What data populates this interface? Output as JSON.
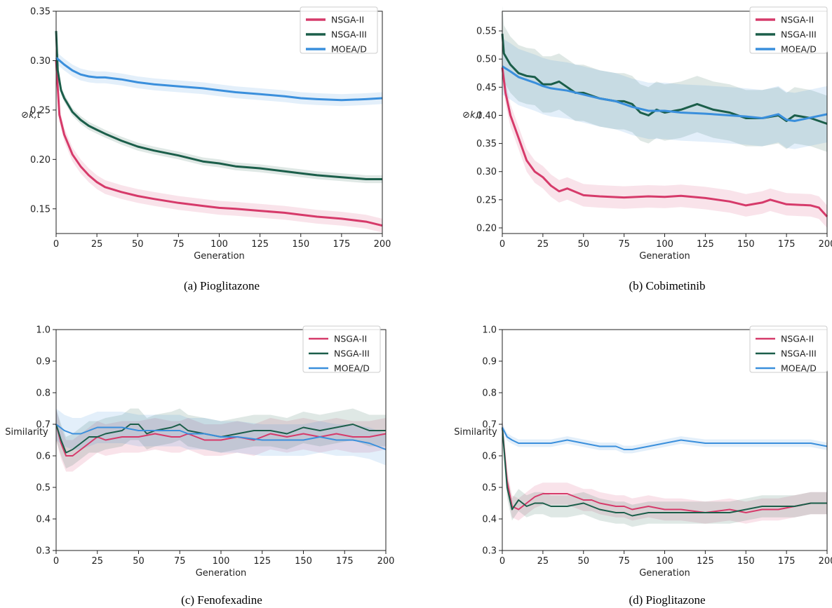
{
  "colors": {
    "nsga2": "#d63a6a",
    "nsga3": "#1b5e4a",
    "moead": "#3a8fdc"
  },
  "chart_data": [
    {
      "id": "a",
      "type": "line",
      "caption": "(a) Pioglitazone",
      "xlabel": "Generation",
      "ylabel": "⊘k,t",
      "xlim": [
        0,
        200
      ],
      "ylim": [
        0.125,
        0.35
      ],
      "xticks": [
        0,
        25,
        50,
        75,
        100,
        125,
        150,
        175,
        200
      ],
      "yticks": [
        0.15,
        0.2,
        0.25,
        0.3,
        0.35
      ],
      "ytick_labels": [
        "0.15",
        "0.20",
        "0.25",
        "0.30",
        "0.35"
      ],
      "legend": "top-right",
      "line_width": 3,
      "series": [
        {
          "name": "NSGA-II",
          "color_key": "nsga2",
          "band": 0.007,
          "x": [
            0,
            2,
            5,
            10,
            15,
            20,
            25,
            30,
            40,
            50,
            60,
            75,
            90,
            100,
            110,
            125,
            140,
            150,
            160,
            175,
            190,
            200
          ],
          "y": [
            0.3,
            0.245,
            0.225,
            0.205,
            0.193,
            0.184,
            0.177,
            0.172,
            0.167,
            0.163,
            0.16,
            0.156,
            0.153,
            0.151,
            0.15,
            0.148,
            0.146,
            0.144,
            0.142,
            0.14,
            0.137,
            0.133
          ]
        },
        {
          "name": "NSGA-III",
          "color_key": "nsga3",
          "band": 0.004,
          "x": [
            0,
            1,
            3,
            5,
            10,
            15,
            20,
            25,
            30,
            40,
            50,
            60,
            75,
            90,
            100,
            110,
            125,
            140,
            150,
            160,
            175,
            190,
            200
          ],
          "y": [
            0.33,
            0.29,
            0.27,
            0.262,
            0.248,
            0.24,
            0.234,
            0.23,
            0.226,
            0.219,
            0.213,
            0.209,
            0.204,
            0.198,
            0.196,
            0.193,
            0.191,
            0.188,
            0.186,
            0.184,
            0.182,
            0.18,
            0.18
          ]
        },
        {
          "name": "MOEA/D",
          "color_key": "moead",
          "band": 0.006,
          "x": [
            0,
            5,
            10,
            15,
            20,
            25,
            30,
            40,
            50,
            60,
            75,
            90,
            100,
            110,
            125,
            140,
            150,
            160,
            175,
            190,
            200
          ],
          "y": [
            0.303,
            0.296,
            0.29,
            0.286,
            0.284,
            0.283,
            0.283,
            0.281,
            0.278,
            0.276,
            0.274,
            0.272,
            0.27,
            0.268,
            0.266,
            0.264,
            0.262,
            0.261,
            0.26,
            0.261,
            0.262
          ]
        }
      ]
    },
    {
      "id": "b",
      "type": "line",
      "caption": "(b) Cobimetinib",
      "xlabel": "Generation",
      "ylabel": "⊘k,t",
      "xlim": [
        0,
        200
      ],
      "ylim": [
        0.19,
        0.585
      ],
      "xticks": [
        0,
        25,
        50,
        75,
        100,
        125,
        150,
        175,
        200
      ],
      "yticks": [
        0.2,
        0.25,
        0.3,
        0.35,
        0.4,
        0.45,
        0.5,
        0.55
      ],
      "ytick_labels": [
        "0.20",
        "0.25",
        "0.30",
        "0.35",
        "0.40",
        "0.45",
        "0.50",
        "0.55"
      ],
      "legend": "top-right",
      "line_width": 3,
      "series": [
        {
          "name": "NSGA-II",
          "color_key": "nsga2",
          "band": 0.02,
          "x": [
            0,
            2,
            5,
            10,
            15,
            20,
            25,
            30,
            35,
            40,
            50,
            60,
            75,
            90,
            100,
            110,
            125,
            140,
            150,
            160,
            165,
            175,
            190,
            195,
            200
          ],
          "y": [
            0.485,
            0.44,
            0.4,
            0.36,
            0.32,
            0.3,
            0.29,
            0.275,
            0.265,
            0.27,
            0.258,
            0.256,
            0.254,
            0.256,
            0.255,
            0.257,
            0.253,
            0.247,
            0.24,
            0.245,
            0.25,
            0.242,
            0.24,
            0.236,
            0.22
          ]
        },
        {
          "name": "NSGA-III",
          "color_key": "nsga3",
          "band": 0.05,
          "x": [
            0,
            1,
            3,
            5,
            10,
            15,
            20,
            25,
            30,
            35,
            40,
            45,
            50,
            60,
            70,
            75,
            80,
            85,
            90,
            95,
            100,
            110,
            120,
            125,
            130,
            140,
            150,
            160,
            170,
            175,
            180,
            190,
            200
          ],
          "y": [
            0.545,
            0.51,
            0.5,
            0.49,
            0.475,
            0.47,
            0.468,
            0.455,
            0.455,
            0.46,
            0.45,
            0.44,
            0.44,
            0.43,
            0.425,
            0.425,
            0.42,
            0.405,
            0.4,
            0.41,
            0.405,
            0.41,
            0.42,
            0.415,
            0.41,
            0.405,
            0.395,
            0.395,
            0.4,
            0.39,
            0.4,
            0.395,
            0.385
          ]
        },
        {
          "name": "MOEA/D",
          "color_key": "moead",
          "band": 0.05,
          "x": [
            0,
            5,
            10,
            15,
            20,
            25,
            30,
            40,
            50,
            60,
            70,
            75,
            80,
            90,
            100,
            110,
            125,
            140,
            150,
            160,
            170,
            175,
            180,
            190,
            200
          ],
          "y": [
            0.487,
            0.478,
            0.468,
            0.463,
            0.458,
            0.452,
            0.448,
            0.444,
            0.437,
            0.43,
            0.425,
            0.42,
            0.415,
            0.408,
            0.408,
            0.405,
            0.403,
            0.4,
            0.398,
            0.395,
            0.402,
            0.392,
            0.39,
            0.396,
            0.402
          ]
        }
      ]
    },
    {
      "id": "c",
      "type": "line",
      "caption": "(c) Fenofexadine",
      "xlabel": "Generation",
      "ylabel": "Similarity",
      "xlim": [
        0,
        200
      ],
      "ylim": [
        0.3,
        1.0
      ],
      "xticks": [
        0,
        25,
        50,
        75,
        100,
        125,
        150,
        175,
        200
      ],
      "yticks": [
        0.3,
        0.4,
        0.5,
        0.6,
        0.7,
        0.8,
        0.9,
        1.0
      ],
      "ytick_labels": [
        "0.3",
        "0.4",
        "0.5",
        "0.6",
        "0.7",
        "0.8",
        "0.9",
        "1.0"
      ],
      "legend": "top-right",
      "line_width": 2,
      "series": [
        {
          "name": "NSGA-II",
          "color_key": "nsga2",
          "band": 0.05,
          "x": [
            0,
            3,
            6,
            10,
            15,
            20,
            25,
            30,
            40,
            50,
            60,
            70,
            75,
            80,
            90,
            100,
            110,
            120,
            125,
            130,
            140,
            150,
            160,
            170,
            180,
            190,
            200
          ],
          "y": [
            0.7,
            0.64,
            0.6,
            0.6,
            0.62,
            0.64,
            0.66,
            0.65,
            0.66,
            0.66,
            0.67,
            0.66,
            0.66,
            0.67,
            0.65,
            0.65,
            0.66,
            0.65,
            0.66,
            0.67,
            0.66,
            0.67,
            0.66,
            0.67,
            0.66,
            0.66,
            0.67
          ]
        },
        {
          "name": "NSGA-III",
          "color_key": "nsga3",
          "band": 0.05,
          "x": [
            0,
            3,
            6,
            10,
            15,
            20,
            25,
            30,
            40,
            45,
            50,
            55,
            60,
            70,
            75,
            80,
            90,
            100,
            110,
            120,
            130,
            140,
            150,
            160,
            170,
            180,
            190,
            200
          ],
          "y": [
            0.7,
            0.65,
            0.61,
            0.62,
            0.64,
            0.66,
            0.66,
            0.67,
            0.68,
            0.7,
            0.7,
            0.67,
            0.68,
            0.69,
            0.7,
            0.68,
            0.67,
            0.66,
            0.67,
            0.68,
            0.68,
            0.67,
            0.69,
            0.68,
            0.69,
            0.7,
            0.68,
            0.68
          ]
        },
        {
          "name": "MOEA/D",
          "color_key": "moead",
          "band": 0.05,
          "x": [
            0,
            5,
            10,
            15,
            20,
            25,
            30,
            40,
            50,
            60,
            70,
            75,
            80,
            90,
            100,
            110,
            125,
            140,
            150,
            160,
            170,
            180,
            190,
            195,
            200
          ],
          "y": [
            0.7,
            0.68,
            0.67,
            0.67,
            0.68,
            0.69,
            0.69,
            0.69,
            0.68,
            0.68,
            0.68,
            0.68,
            0.67,
            0.67,
            0.66,
            0.66,
            0.65,
            0.65,
            0.65,
            0.66,
            0.65,
            0.65,
            0.64,
            0.63,
            0.62
          ]
        }
      ]
    },
    {
      "id": "d",
      "type": "line",
      "caption": "(d) Pioglitazone",
      "xlabel": "Generation",
      "ylabel": "Similarity",
      "xlim": [
        0,
        200
      ],
      "ylim": [
        0.3,
        1.0
      ],
      "xticks": [
        0,
        25,
        50,
        75,
        100,
        125,
        150,
        175,
        200
      ],
      "yticks": [
        0.3,
        0.4,
        0.5,
        0.6,
        0.7,
        0.8,
        0.9,
        1.0
      ],
      "ytick_labels": [
        "0.3",
        "0.4",
        "0.5",
        "0.6",
        "0.7",
        "0.8",
        "0.9",
        "1.0"
      ],
      "legend": "top-right",
      "line_width": 2,
      "series": [
        {
          "name": "NSGA-II",
          "color_key": "nsga2",
          "band": 0.035,
          "x": [
            0,
            3,
            6,
            10,
            15,
            20,
            25,
            30,
            40,
            45,
            50,
            55,
            60,
            70,
            75,
            80,
            90,
            100,
            110,
            125,
            140,
            150,
            160,
            170,
            180,
            190,
            200
          ],
          "y": [
            0.69,
            0.52,
            0.44,
            0.43,
            0.45,
            0.47,
            0.48,
            0.48,
            0.48,
            0.47,
            0.46,
            0.46,
            0.45,
            0.44,
            0.44,
            0.43,
            0.44,
            0.43,
            0.43,
            0.42,
            0.43,
            0.42,
            0.43,
            0.43,
            0.44,
            0.45,
            0.45
          ]
        },
        {
          "name": "NSGA-III",
          "color_key": "nsga3",
          "band": 0.035,
          "x": [
            0,
            3,
            6,
            10,
            15,
            20,
            25,
            30,
            40,
            50,
            55,
            60,
            70,
            75,
            80,
            90,
            100,
            110,
            125,
            140,
            150,
            160,
            170,
            180,
            190,
            200
          ],
          "y": [
            0.69,
            0.5,
            0.43,
            0.46,
            0.44,
            0.45,
            0.45,
            0.44,
            0.44,
            0.45,
            0.44,
            0.43,
            0.42,
            0.42,
            0.41,
            0.42,
            0.42,
            0.42,
            0.42,
            0.42,
            0.43,
            0.44,
            0.44,
            0.44,
            0.45,
            0.45
          ]
        },
        {
          "name": "MOEA/D",
          "color_key": "moead",
          "band": 0.012,
          "x": [
            0,
            3,
            6,
            10,
            15,
            20,
            30,
            40,
            50,
            60,
            70,
            75,
            80,
            90,
            100,
            110,
            125,
            140,
            150,
            160,
            170,
            180,
            190,
            200
          ],
          "y": [
            0.69,
            0.66,
            0.65,
            0.64,
            0.64,
            0.64,
            0.64,
            0.65,
            0.64,
            0.63,
            0.63,
            0.62,
            0.62,
            0.63,
            0.64,
            0.65,
            0.64,
            0.64,
            0.64,
            0.64,
            0.64,
            0.64,
            0.64,
            0.63
          ]
        }
      ]
    }
  ]
}
